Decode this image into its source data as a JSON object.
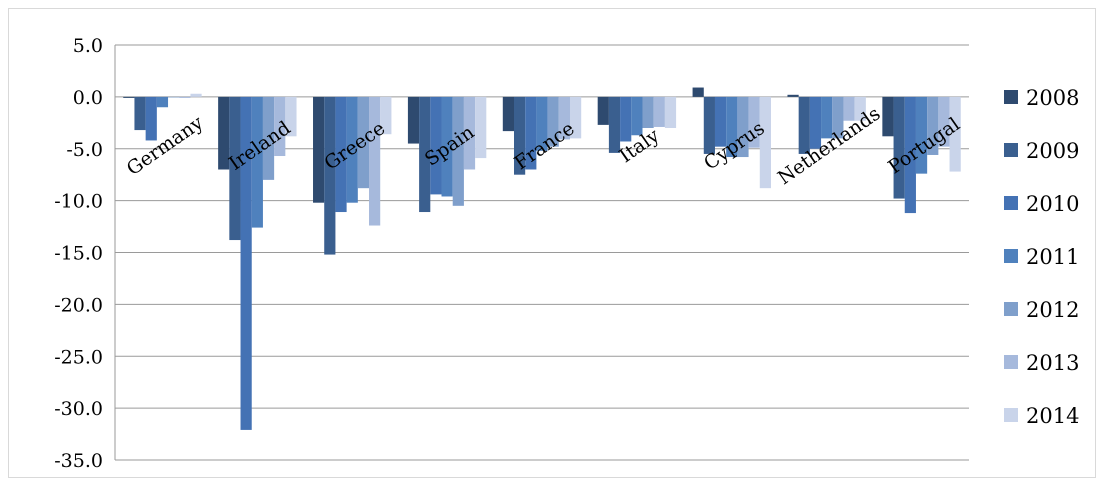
{
  "chart_data": {
    "type": "bar",
    "title": "",
    "xlabel": "",
    "ylabel": "",
    "categories": [
      "Germany",
      "Ireland",
      "Greece",
      "Spain",
      "France",
      "Italy",
      "Cyprus",
      "Netherlands",
      "Portugal"
    ],
    "series": [
      {
        "name": "2008",
        "color": "#2e4a6f",
        "values": [
          -0.1,
          -7.0,
          -10.2,
          -4.5,
          -3.3,
          -2.7,
          0.9,
          0.2,
          -3.8
        ]
      },
      {
        "name": "2009",
        "color": "#3a5f8f",
        "values": [
          -3.2,
          -13.8,
          -15.2,
          -11.1,
          -7.5,
          -5.4,
          -5.5,
          -5.5,
          -9.8
        ]
      },
      {
        "name": "2010",
        "color": "#4472b4",
        "values": [
          -4.2,
          -32.1,
          -11.1,
          -9.4,
          -7.0,
          -4.3,
          -4.8,
          -5.0,
          -11.2
        ]
      },
      {
        "name": "2011",
        "color": "#4f81bd",
        "values": [
          -1.0,
          -12.6,
          -10.2,
          -9.6,
          -5.2,
          -3.7,
          -5.8,
          -4.0,
          -7.4
        ]
      },
      {
        "name": "2012",
        "color": "#7f9fcb",
        "values": [
          0.0,
          -8.0,
          -8.8,
          -10.5,
          -4.8,
          -3.0,
          -5.8,
          -4.0,
          -5.6
        ]
      },
      {
        "name": "2013",
        "color": "#a6b9dc",
        "values": [
          -0.1,
          -5.7,
          -12.4,
          -7.0,
          -4.1,
          -2.9,
          -4.9,
          -2.3,
          -4.8
        ]
      },
      {
        "name": "2014",
        "color": "#c9d4ea",
        "values": [
          0.3,
          -3.8,
          -3.6,
          -5.9,
          -4.0,
          -3.0,
          -8.8,
          -2.3,
          -7.2
        ]
      }
    ],
    "yticks": [
      "5.0",
      "0.0",
      "-5.0",
      "-10.0",
      "-15.0",
      "-20.0",
      "-25.0",
      "-30.0",
      "-35.0"
    ],
    "ylim": [
      -35,
      5
    ],
    "grid": true,
    "legend": "right"
  }
}
